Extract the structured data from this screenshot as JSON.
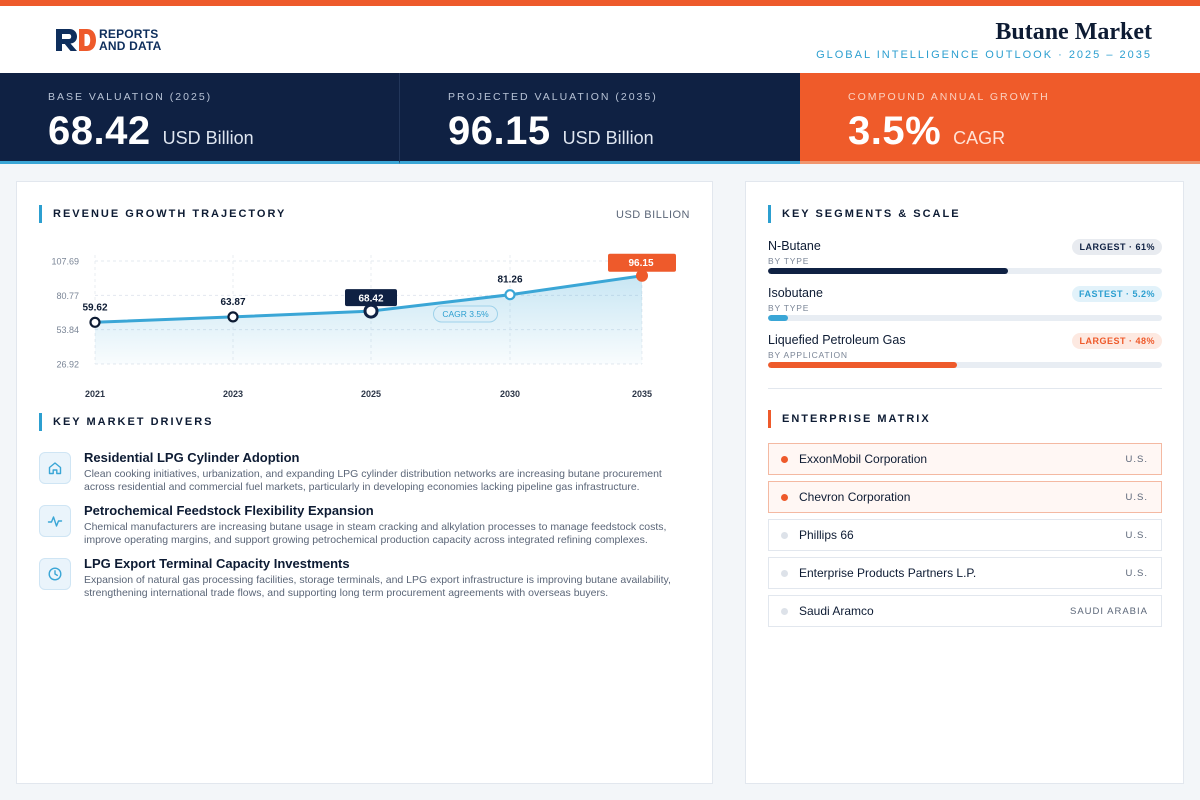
{
  "brand": {
    "line1": "REPORTS",
    "line2": "AND DATA"
  },
  "header": {
    "title": "Butane Market",
    "subtitle": "GLOBAL INTELLIGENCE OUTLOOK  ·  2025 – 2035"
  },
  "kpis": [
    {
      "label": "BASE VALUATION (2025)",
      "value": "68.42",
      "unit": "USD Billion"
    },
    {
      "label": "PROJECTED VALUATION (2035)",
      "value": "96.15",
      "unit": "USD Billion"
    },
    {
      "label": "COMPOUND ANNUAL GROWTH",
      "value": "3.5%",
      "unit": "CAGR"
    }
  ],
  "chart_data": {
    "type": "area",
    "title": "REVENUE GROWTH TRAJECTORY",
    "unit_label": "USD BILLION",
    "categories": [
      "2021",
      "2023",
      "2025",
      "2030",
      "2035"
    ],
    "values": [
      59.62,
      63.87,
      68.42,
      81.26,
      96.15
    ],
    "value_labels": [
      "59.62",
      "63.87",
      "68.42",
      "81.26",
      "96.15"
    ],
    "y_ticks": [
      "107.69",
      "80.77",
      "53.84",
      "26.92"
    ],
    "ylim": [
      26.92,
      107.69
    ],
    "highlight_dark_index": 2,
    "highlight_accent_index": 4,
    "annotation": "CAGR 3.5%",
    "grid": true,
    "colors": {
      "line": "#3aa6d6",
      "dark": "#0f2143",
      "accent": "#ee5a2b"
    }
  },
  "drivers": {
    "title": "KEY MARKET DRIVERS",
    "items": [
      {
        "icon": "home-icon",
        "title": "Residential LPG Cylinder Adoption",
        "text": "Clean cooking initiatives, urbanization, and expanding LPG cylinder distribution networks are increasing butane procurement across residential and commercial fuel markets, particularly in developing economies lacking pipeline gas infrastructure."
      },
      {
        "icon": "pulse-icon",
        "title": "Petrochemical Feedstock Flexibility Expansion",
        "text": "Chemical manufacturers are increasing butane usage in steam cracking and alkylation processes to manage feedstock costs, improve operating margins, and support growing petrochemical production capacity across integrated refining complexes."
      },
      {
        "icon": "clock-icon",
        "title": "LPG Export Terminal Capacity Investments",
        "text": "Expansion of natural gas processing facilities, storage terminals, and LPG export infrastructure is improving butane availability, strengthening international trade flows, and supporting long term procurement agreements with overseas buyers."
      }
    ]
  },
  "segments": {
    "title": "KEY SEGMENTS & SCALE",
    "items": [
      {
        "name": "N-Butane",
        "type": "BY TYPE",
        "badge": "LARGEST · 61%",
        "badge_style": "b-dark",
        "share": 61,
        "color": "#0f2143"
      },
      {
        "name": "Isobutane",
        "type": "BY TYPE",
        "badge": "FASTEST · 5.2%",
        "badge_style": "b-blue",
        "share": 5.2,
        "color": "#3aa6d6"
      },
      {
        "name": "Liquefied Petroleum Gas",
        "type": "BY APPLICATION",
        "badge": "LARGEST · 48%",
        "badge_style": "b-orange",
        "share": 48,
        "color": "#ee5a2b"
      }
    ]
  },
  "matrix": {
    "title": "ENTERPRISE MATRIX",
    "items": [
      {
        "name": "ExxonMobil Corporation",
        "region": "U.S.",
        "highlight": true
      },
      {
        "name": "Chevron Corporation",
        "region": "U.S.",
        "highlight": true
      },
      {
        "name": "Phillips 66",
        "region": "U.S.",
        "highlight": false
      },
      {
        "name": "Enterprise Products Partners L.P.",
        "region": "U.S.",
        "highlight": false
      },
      {
        "name": "Saudi Aramco",
        "region": "SAUDI ARABIA",
        "highlight": false
      }
    ]
  }
}
